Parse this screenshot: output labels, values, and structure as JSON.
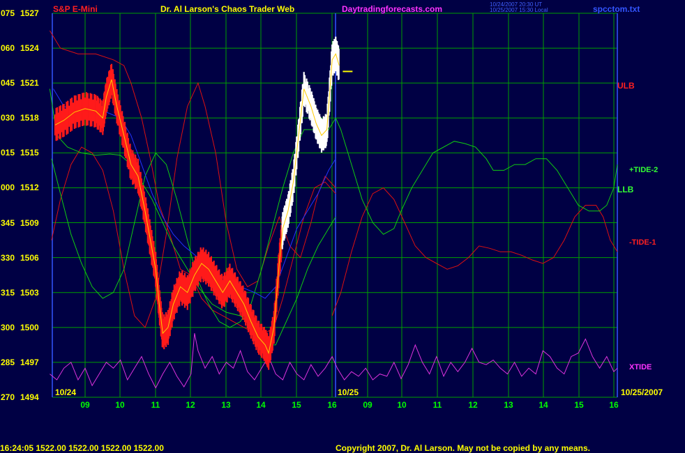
{
  "header": {
    "symbol": "S&P E-Mini",
    "title": "Dr. Al Larson's Chaos Trader Web",
    "site": "Daytradingforecasts.com",
    "stamp1": "10/24/2007 20:30 UT",
    "stamp2": "10/25/2007 15:30 Local",
    "file": "spcctom.txt"
  },
  "footer": {
    "quote": "16:24:05  1522.00 1522.00 1522.00 1522.00",
    "copyright": "Copyright 2007, Dr. Al Larson. May not be copied by any means."
  },
  "colors": {
    "background": "#000044",
    "grid": "#00a000",
    "axis": "#ffff00",
    "price": "#ff1a1a",
    "price_high": "#ffffff",
    "ulb": "#dd1010",
    "llb": "#10cc10",
    "xtide": "#dd33dd",
    "ma": "#2233ff"
  },
  "chart_data": {
    "type": "line",
    "y_labels": [
      {
        "left": "075",
        "right": "1527"
      },
      {
        "left": "060",
        "right": "1524"
      },
      {
        "left": "045",
        "right": "1521"
      },
      {
        "left": "030",
        "right": "1518"
      },
      {
        "left": "015",
        "right": "1515"
      },
      {
        "left": "000",
        "right": "1512"
      },
      {
        "left": "345",
        "right": "1509"
      },
      {
        "left": "330",
        "right": "1506"
      },
      {
        "left": "315",
        "right": "1503"
      },
      {
        "left": "300",
        "right": "1500"
      },
      {
        "left": "285",
        "right": "1497"
      },
      {
        "left": "270",
        "right": "1494"
      }
    ],
    "ylim": [
      1494,
      1527
    ],
    "x_ticks": [
      "09",
      "10",
      "11",
      "12",
      "13",
      "14",
      "15",
      "16",
      "09",
      "10",
      "11",
      "12",
      "13",
      "14",
      "15",
      "16"
    ],
    "date_labels": {
      "start": "10/24",
      "mid": "10/25",
      "end": "10/25/2007"
    },
    "legend": {
      "ulb": "ULB",
      "tide2": "+TIDE-2",
      "llb": "LLB",
      "tide1": "-TIDE-1",
      "xtide": "XTIDE"
    },
    "price_series": [
      [
        8.15,
        1517.4
      ],
      [
        8.4,
        1517.8
      ],
      [
        8.7,
        1518.5
      ],
      [
        9.0,
        1518.8
      ],
      [
        9.3,
        1518.6
      ],
      [
        9.5,
        1518.0
      ],
      [
        9.6,
        1519.8
      ],
      [
        9.75,
        1521.3
      ],
      [
        9.9,
        1519.0
      ],
      [
        10.1,
        1516.5
      ],
      [
        10.3,
        1514.0
      ],
      [
        10.5,
        1513.0
      ],
      [
        10.7,
        1510.0
      ],
      [
        10.85,
        1507.5
      ],
      [
        11.0,
        1505.0
      ],
      [
        11.1,
        1502.0
      ],
      [
        11.2,
        1499.5
      ],
      [
        11.35,
        1500.0
      ],
      [
        11.5,
        1502.0
      ],
      [
        11.7,
        1503.5
      ],
      [
        11.9,
        1503.0
      ],
      [
        12.1,
        1504.5
      ],
      [
        12.3,
        1505.5
      ],
      [
        12.5,
        1505.0
      ],
      [
        12.7,
        1504.0
      ],
      [
        12.9,
        1503.0
      ],
      [
        13.1,
        1504.0
      ],
      [
        13.3,
        1503.0
      ],
      [
        13.5,
        1502.0
      ],
      [
        13.7,
        1500.5
      ],
      [
        13.9,
        1499.2
      ],
      [
        14.1,
        1498.5
      ],
      [
        14.2,
        1497.8
      ],
      [
        14.35,
        1500.0
      ],
      [
        14.5,
        1505.5
      ],
      [
        14.6,
        1508.5
      ],
      [
        14.75,
        1510.0
      ],
      [
        14.9,
        1512.5
      ],
      [
        15.05,
        1516.5
      ],
      [
        15.2,
        1520.5
      ],
      [
        15.4,
        1519.0
      ],
      [
        15.55,
        1517.5
      ],
      [
        15.7,
        1516.5
      ],
      [
        15.85,
        1517.0
      ],
      [
        16.0,
        1523.0
      ],
      [
        16.1,
        1523.5
      ],
      [
        16.2,
        1522.5
      ]
    ],
    "overlays": {
      "ulb": [
        [
          8.0,
          1525.5
        ],
        [
          8.3,
          1524.0
        ],
        [
          8.8,
          1523.5
        ],
        [
          9.3,
          1523.5
        ],
        [
          9.8,
          1523.0
        ],
        [
          10.1,
          1522.5
        ],
        [
          10.3,
          1521.0
        ],
        [
          10.6,
          1518.0
        ],
        [
          10.85,
          1514.5
        ],
        [
          11.1,
          1510.5
        ],
        [
          11.4,
          1508.0
        ],
        [
          11.7,
          1505.0
        ],
        [
          12.0,
          1504.5
        ],
        [
          12.3,
          1502.5
        ],
        [
          12.6,
          1501.5
        ],
        [
          12.9,
          1501.0
        ],
        [
          13.2,
          1500.5
        ],
        [
          13.5,
          1500.0
        ],
        [
          13.8,
          1499.5
        ],
        [
          14.1,
          1499.5
        ],
        [
          14.35,
          1500.0
        ],
        [
          14.6,
          1502.5
        ],
        [
          14.9,
          1506.0
        ],
        [
          15.2,
          1509.5
        ],
        [
          15.5,
          1512.0
        ],
        [
          15.8,
          1512.5
        ],
        [
          16.1,
          1511.5
        ]
      ],
      "green_a": [
        [
          8.0,
          1520.5
        ],
        [
          8.2,
          1516.5
        ],
        [
          8.5,
          1515.5
        ],
        [
          8.9,
          1515.0
        ],
        [
          9.3,
          1514.8
        ],
        [
          9.7,
          1514.9
        ],
        [
          10.0,
          1514.8
        ],
        [
          10.3,
          1514.0
        ],
        [
          10.6,
          1512.5
        ],
        [
          10.9,
          1511.0
        ],
        [
          11.2,
          1509.0
        ],
        [
          11.5,
          1507.0
        ],
        [
          11.8,
          1505.5
        ],
        [
          12.2,
          1503.5
        ],
        [
          12.6,
          1502.0
        ],
        [
          13.0,
          1501.3
        ],
        [
          13.4,
          1501.0
        ],
        [
          13.8,
          1500.0
        ],
        [
          14.1,
          1498.5
        ],
        [
          14.4,
          1498.5
        ],
        [
          14.7,
          1500.5
        ],
        [
          15.0,
          1502.5
        ],
        [
          15.3,
          1505.0
        ],
        [
          15.6,
          1507.0
        ],
        [
          15.9,
          1508.5
        ],
        [
          16.1,
          1509.5
        ]
      ],
      "red_b": [
        [
          8.05,
          1507.5
        ],
        [
          8.3,
          1511.0
        ],
        [
          8.6,
          1514.0
        ],
        [
          8.9,
          1515.5
        ],
        [
          9.2,
          1515.0
        ],
        [
          9.5,
          1513.5
        ],
        [
          9.8,
          1510.0
        ],
        [
          10.1,
          1505.0
        ],
        [
          10.4,
          1501.0
        ],
        [
          10.7,
          1500.0
        ],
        [
          11.0,
          1502.5
        ],
        [
          11.3,
          1508.0
        ],
        [
          11.6,
          1514.5
        ],
        [
          11.9,
          1519.0
        ],
        [
          12.2,
          1521.0
        ],
        [
          12.4,
          1519.0
        ],
        [
          12.7,
          1515.0
        ],
        [
          13.0,
          1509.0
        ],
        [
          13.3,
          1505.0
        ],
        [
          13.6,
          1503.5
        ],
        [
          13.9,
          1504.0
        ],
        [
          14.2,
          1507.0
        ],
        [
          14.5,
          1509.5
        ],
        [
          14.8,
          1507.0
        ],
        [
          15.1,
          1506.0
        ],
        [
          15.4,
          1509.0
        ],
        [
          15.6,
          1511.5
        ],
        [
          15.8,
          1513.0
        ],
        [
          16.1,
          1512.0
        ]
      ],
      "green_b": [
        [
          8.05,
          1514.5
        ],
        [
          8.3,
          1511.5
        ],
        [
          8.6,
          1508.0
        ],
        [
          8.9,
          1505.5
        ],
        [
          9.2,
          1503.5
        ],
        [
          9.5,
          1502.5
        ],
        [
          9.8,
          1503.0
        ],
        [
          10.1,
          1505.0
        ],
        [
          10.4,
          1509.0
        ],
        [
          10.7,
          1513.0
        ],
        [
          11.0,
          1515.0
        ],
        [
          11.3,
          1514.0
        ],
        [
          11.6,
          1511.0
        ],
        [
          11.9,
          1507.5
        ],
        [
          12.2,
          1504.0
        ],
        [
          12.5,
          1502.0
        ],
        [
          12.8,
          1500.5
        ],
        [
          13.1,
          1500.0
        ],
        [
          13.4,
          1500.5
        ],
        [
          13.7,
          1502.0
        ],
        [
          14.0,
          1505.0
        ],
        [
          14.3,
          1508.5
        ],
        [
          14.6,
          1512.0
        ],
        [
          14.9,
          1515.0
        ],
        [
          15.2,
          1517.0
        ],
        [
          15.5,
          1517.0
        ],
        [
          15.8,
          1516.5
        ],
        [
          16.0,
          1517.5
        ],
        [
          16.1,
          1518.0
        ],
        [
          16.3,
          1517.0
        ],
        [
          16.6,
          1514.0
        ],
        [
          16.9,
          1511.0
        ],
        [
          17.2,
          1509.0
        ],
        [
          17.5,
          1508.0
        ],
        [
          17.8,
          1508.5
        ],
        [
          18.0,
          1510.0
        ],
        [
          18.3,
          1512.0
        ],
        [
          18.6,
          1513.5
        ],
        [
          18.9,
          1515.0
        ],
        [
          19.2,
          1515.5
        ],
        [
          19.5,
          1516.0
        ],
        [
          19.8,
          1515.8
        ],
        [
          20.1,
          1515.5
        ],
        [
          20.4,
          1514.5
        ],
        [
          20.6,
          1513.5
        ],
        [
          20.9,
          1513.5
        ],
        [
          21.2,
          1514.0
        ],
        [
          21.5,
          1514.0
        ],
        [
          21.8,
          1514.5
        ],
        [
          22.1,
          1514.5
        ],
        [
          22.4,
          1513.5
        ],
        [
          22.7,
          1512.0
        ],
        [
          23.0,
          1510.5
        ],
        [
          23.3,
          1510.0
        ],
        [
          23.6,
          1510.0
        ],
        [
          23.8,
          1510.5
        ],
        [
          24.0,
          1512.0
        ],
        [
          24.1,
          1514.0
        ]
      ],
      "red_c": [
        [
          16.0,
          1501.0
        ],
        [
          16.3,
          1503.0
        ],
        [
          16.6,
          1506.5
        ],
        [
          16.9,
          1509.5
        ],
        [
          17.2,
          1511.5
        ],
        [
          17.5,
          1512.0
        ],
        [
          17.8,
          1511.0
        ],
        [
          18.1,
          1509.0
        ],
        [
          18.4,
          1507.0
        ],
        [
          18.7,
          1506.0
        ],
        [
          19.0,
          1505.5
        ],
        [
          19.3,
          1505.0
        ],
        [
          19.6,
          1505.3
        ],
        [
          19.9,
          1506.0
        ],
        [
          20.2,
          1507.0
        ],
        [
          20.5,
          1506.8
        ],
        [
          20.8,
          1506.5
        ],
        [
          21.1,
          1506.5
        ],
        [
          21.4,
          1506.2
        ],
        [
          21.7,
          1505.8
        ],
        [
          22.0,
          1505.5
        ],
        [
          22.3,
          1506.0
        ],
        [
          22.6,
          1507.5
        ],
        [
          22.9,
          1509.5
        ],
        [
          23.2,
          1510.5
        ],
        [
          23.5,
          1510.5
        ],
        [
          23.7,
          1509.5
        ],
        [
          23.9,
          1507.5
        ],
        [
          24.1,
          1506.5
        ]
      ],
      "ma": [
        [
          8.1,
          1520.5
        ],
        [
          8.4,
          1519.0
        ],
        [
          8.8,
          1518.5
        ],
        [
          9.2,
          1518.3
        ],
        [
          9.6,
          1518.5
        ],
        [
          10.0,
          1518.0
        ],
        [
          10.3,
          1516.5
        ],
        [
          10.6,
          1514.0
        ],
        [
          10.9,
          1511.5
        ],
        [
          11.2,
          1509.5
        ],
        [
          11.5,
          1508.0
        ],
        [
          11.8,
          1507.0
        ],
        [
          12.2,
          1506.0
        ],
        [
          12.6,
          1505.0
        ],
        [
          13.0,
          1504.0
        ],
        [
          13.4,
          1503.5
        ],
        [
          13.8,
          1503.0
        ],
        [
          14.1,
          1502.5
        ],
        [
          14.4,
          1503.5
        ],
        [
          14.7,
          1506.0
        ],
        [
          15.0,
          1508.5
        ],
        [
          15.3,
          1510.0
        ],
        [
          15.6,
          1511.5
        ],
        [
          15.9,
          1513.5
        ],
        [
          16.1,
          1514.5
        ]
      ],
      "xtide": [
        [
          8.0,
          1496.0
        ],
        [
          8.2,
          1495.5
        ],
        [
          8.4,
          1496.5
        ],
        [
          8.6,
          1497.0
        ],
        [
          8.8,
          1495.5
        ],
        [
          9.0,
          1496.5
        ],
        [
          9.2,
          1495.0
        ],
        [
          9.4,
          1496.0
        ],
        [
          9.6,
          1497.0
        ],
        [
          9.8,
          1496.5
        ],
        [
          10.0,
          1497.2
        ],
        [
          10.2,
          1495.5
        ],
        [
          10.4,
          1496.5
        ],
        [
          10.6,
          1497.5
        ],
        [
          10.8,
          1496.0
        ],
        [
          11.0,
          1494.8
        ],
        [
          11.2,
          1496.0
        ],
        [
          11.4,
          1497.0
        ],
        [
          11.6,
          1495.8
        ],
        [
          11.8,
          1494.9
        ],
        [
          12.0,
          1496.0
        ],
        [
          12.1,
          1499.5
        ],
        [
          12.2,
          1498.0
        ],
        [
          12.4,
          1496.5
        ],
        [
          12.6,
          1497.5
        ],
        [
          12.8,
          1496.0
        ],
        [
          13.0,
          1497.0
        ],
        [
          13.2,
          1496.5
        ],
        [
          13.4,
          1498.0
        ],
        [
          13.6,
          1496.2
        ],
        [
          13.8,
          1495.5
        ],
        [
          14.0,
          1496.5
        ],
        [
          14.2,
          1497.5
        ],
        [
          14.4,
          1496.0
        ],
        [
          14.6,
          1495.5
        ],
        [
          14.8,
          1497.0
        ],
        [
          15.0,
          1496.0
        ],
        [
          15.2,
          1495.5
        ],
        [
          15.4,
          1496.8
        ],
        [
          15.6,
          1495.8
        ],
        [
          15.8,
          1496.5
        ],
        [
          16.0,
          1497.5
        ],
        [
          16.2,
          1496.5
        ],
        [
          16.4,
          1495.5
        ],
        [
          16.6,
          1496.2
        ],
        [
          16.8,
          1495.8
        ],
        [
          17.0,
          1496.5
        ],
        [
          17.2,
          1495.5
        ],
        [
          17.4,
          1496.0
        ],
        [
          17.6,
          1495.8
        ],
        [
          17.8,
          1497.0
        ],
        [
          18.0,
          1495.6
        ],
        [
          18.2,
          1496.8
        ],
        [
          18.4,
          1498.5
        ],
        [
          18.6,
          1497.0
        ],
        [
          18.8,
          1496.0
        ],
        [
          19.0,
          1497.5
        ],
        [
          19.2,
          1495.8
        ],
        [
          19.4,
          1497.0
        ],
        [
          19.6,
          1496.2
        ],
        [
          19.8,
          1497.0
        ],
        [
          20.0,
          1498.2
        ],
        [
          20.2,
          1497.0
        ],
        [
          20.4,
          1496.8
        ],
        [
          20.6,
          1497.2
        ],
        [
          20.8,
          1496.5
        ],
        [
          21.0,
          1496.0
        ],
        [
          21.2,
          1497.0
        ],
        [
          21.4,
          1495.8
        ],
        [
          21.6,
          1496.5
        ],
        [
          21.8,
          1496.0
        ],
        [
          22.0,
          1498.0
        ],
        [
          22.2,
          1497.5
        ],
        [
          22.4,
          1496.5
        ],
        [
          22.6,
          1496.0
        ],
        [
          22.8,
          1497.5
        ],
        [
          23.0,
          1497.8
        ],
        [
          23.2,
          1499.0
        ],
        [
          23.4,
          1497.5
        ],
        [
          23.6,
          1496.5
        ],
        [
          23.8,
          1497.5
        ],
        [
          24.0,
          1496.2
        ],
        [
          24.1,
          1496.5
        ]
      ]
    }
  }
}
